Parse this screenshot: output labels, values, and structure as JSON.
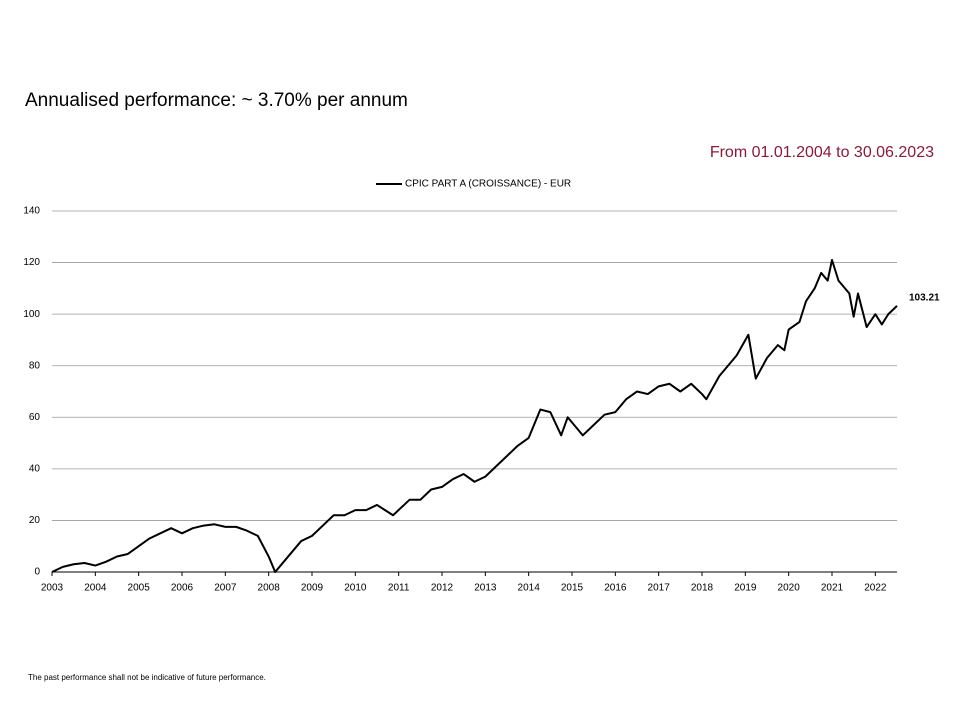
{
  "chart_data": {
    "type": "line",
    "title": "Annualised performance: ~ 3.70% per annum",
    "subtitle": "From 01.01.2004 to 30.06.2023",
    "footnote": "The past performance shall not be indicative of future performance.",
    "x": [
      2003,
      2003.25,
      2003.5,
      2003.75,
      2004,
      2004.25,
      2004.5,
      2004.75,
      2005,
      2005.25,
      2005.5,
      2005.75,
      2006,
      2006.25,
      2006.5,
      2006.75,
      2007,
      2007.25,
      2007.5,
      2007.75,
      2008,
      2008.15,
      2008.5,
      2008.75,
      2009,
      2009.25,
      2009.5,
      2009.75,
      2010,
      2010.25,
      2010.5,
      2010.87,
      2011.25,
      2011.5,
      2011.75,
      2012,
      2012.25,
      2012.5,
      2012.75,
      2013,
      2013.25,
      2013.5,
      2013.75,
      2014,
      2014.27,
      2014.5,
      2014.75,
      2014.9,
      2015.25,
      2015.5,
      2015.75,
      2016,
      2016.25,
      2016.5,
      2016.75,
      2017,
      2017.25,
      2017.5,
      2017.75,
      2018,
      2018.1,
      2018.4,
      2018.6,
      2018.8,
      2019.07,
      2019.24,
      2019.5,
      2019.75,
      2019.9,
      2020,
      2020.25,
      2020.4,
      2020.6,
      2020.75,
      2020.9,
      2021,
      2021.15,
      2021.4,
      2021.5,
      2021.6,
      2021.8,
      2022,
      2022.15,
      2022.3,
      2022.5
    ],
    "series": [
      {
        "name": "CPIC PART A (CROISSANCE) - EUR",
        "color": "#000000",
        "values": [
          0,
          2,
          3,
          3.5,
          2.5,
          4,
          6,
          7,
          10,
          13,
          15,
          17,
          15,
          17,
          18,
          18.5,
          17.5,
          17.5,
          16,
          14,
          6,
          0,
          7,
          12,
          14,
          18,
          22,
          22,
          24,
          24,
          26,
          22,
          28,
          28,
          32,
          33,
          36,
          38,
          35,
          37,
          41,
          45,
          49,
          52,
          63,
          62,
          53,
          60,
          53,
          57,
          61,
          62,
          67,
          70,
          69,
          72,
          73,
          70,
          73,
          69,
          67,
          76,
          80,
          84,
          92,
          75,
          83,
          88,
          86,
          94,
          97,
          105,
          110,
          116,
          113,
          121,
          113,
          108,
          99,
          108,
          95,
          100,
          96,
          100,
          103.21
        ]
      }
    ],
    "xlim": [
      2003,
      2022.5
    ],
    "xticks": [
      2003,
      2004,
      2005,
      2006,
      2007,
      2008,
      2009,
      2010,
      2011,
      2012,
      2013,
      2014,
      2015,
      2016,
      2017,
      2018,
      2019,
      2020,
      2021,
      2022
    ],
    "ylim": [
      0,
      140
    ],
    "yticks": [
      0,
      20,
      40,
      60,
      80,
      100,
      120,
      140
    ],
    "grid": true
  }
}
